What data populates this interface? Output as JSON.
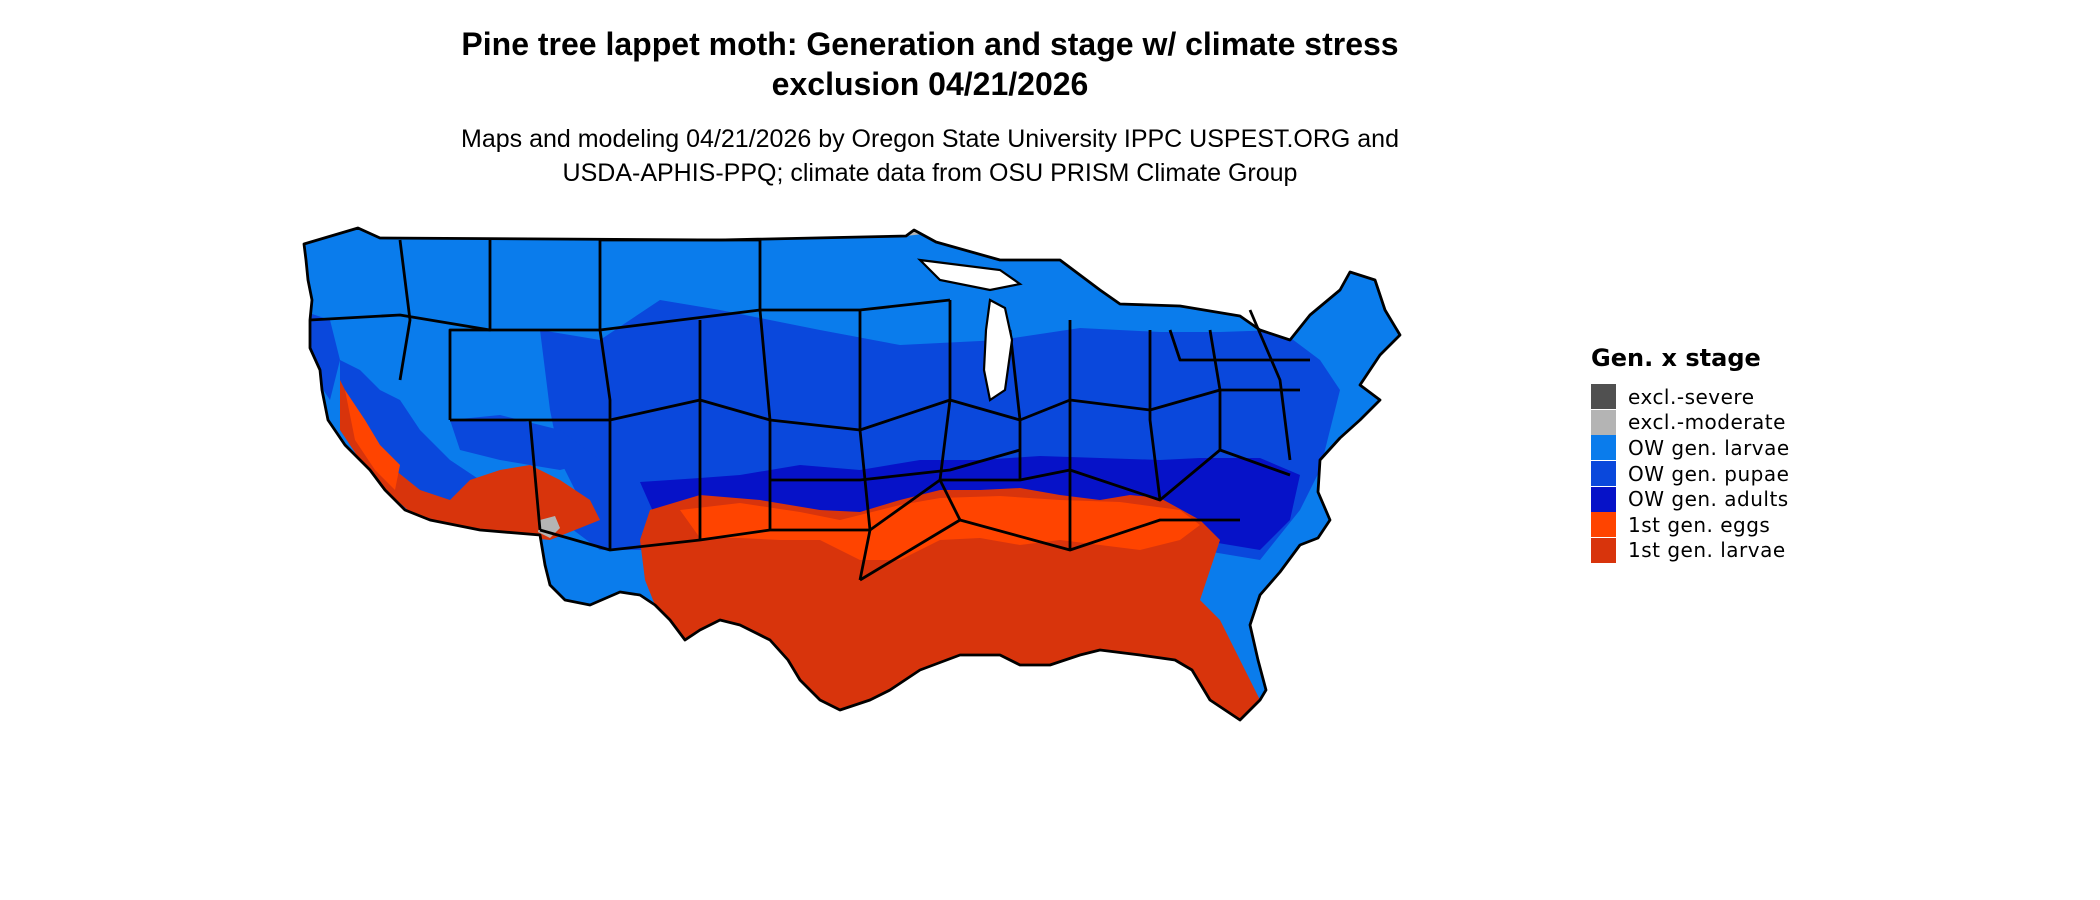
{
  "title": {
    "line1": "Pine tree lappet moth: Generation and stage w/ climate stress",
    "line2": "exclusion 04/21/2026"
  },
  "subtitle": {
    "line1": "Maps and modeling 04/21/2026 by Oregon State University IPPC USPEST.ORG and",
    "line2": "USDA-APHIS-PPQ; climate data from OSU PRISM Climate Group"
  },
  "legend": {
    "title": "Gen. x stage",
    "items": [
      {
        "label": "excl.-severe",
        "color": "#505050"
      },
      {
        "label": "excl.-moderate",
        "color": "#b4b4b4"
      },
      {
        "label": "OW gen. larvae",
        "color": "#0a7cec"
      },
      {
        "label": "OW gen. pupae",
        "color": "#0a48dc"
      },
      {
        "label": "OW gen. adults",
        "color": "#0612c8"
      },
      {
        "label": "1st gen. eggs",
        "color": "#ff4400"
      },
      {
        "label": "1st gen. larvae",
        "color": "#d8340c"
      }
    ]
  }
}
